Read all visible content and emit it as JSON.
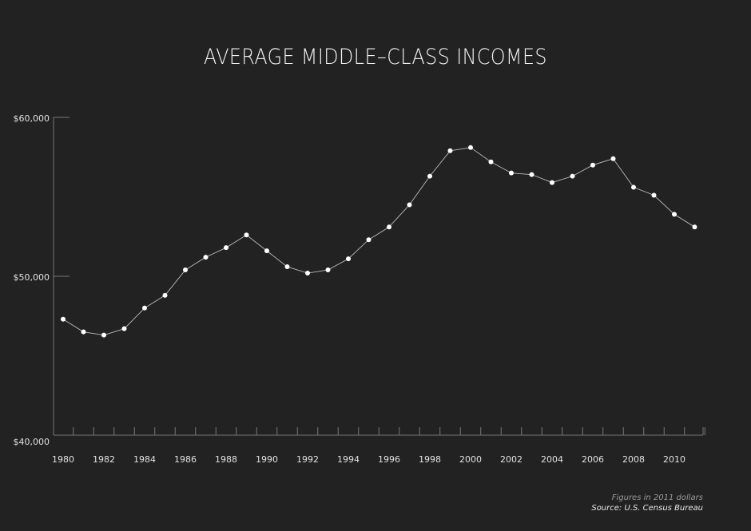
{
  "chart_data": {
    "type": "line",
    "title": "AVERAGE MIDDLE–CLASS INCOMES",
    "xlabel": "",
    "ylabel": "",
    "x": [
      1980,
      1981,
      1982,
      1983,
      1984,
      1985,
      1986,
      1987,
      1988,
      1989,
      1990,
      1991,
      1992,
      1993,
      1994,
      1995,
      1996,
      1997,
      1998,
      1999,
      2000,
      2001,
      2002,
      2003,
      2004,
      2005,
      2006,
      2007,
      2008,
      2009,
      2010,
      2011
    ],
    "series": [
      {
        "name": "Average middle-class income",
        "values": [
          47300,
          46500,
          46300,
          46700,
          48000,
          48800,
          50400,
          51200,
          51800,
          52600,
          51600,
          50600,
          50200,
          50400,
          51100,
          52300,
          53100,
          54500,
          56300,
          57900,
          58100,
          57200,
          56500,
          56400,
          55900,
          56300,
          57000,
          57400,
          55600,
          55100,
          53900,
          53100
        ]
      }
    ],
    "ylim": [
      40000,
      60000
    ],
    "yticks": [
      {
        "value": 40000,
        "label": "$40,000"
      },
      {
        "value": 50000,
        "label": "$50,000"
      },
      {
        "value": 60000,
        "label": "$60,000"
      }
    ],
    "xticklabels": [
      "1980",
      "1982",
      "1984",
      "1986",
      "1988",
      "1990",
      "1992",
      "1994",
      "1996",
      "1998",
      "2000",
      "2002",
      "2004",
      "2006",
      "2008",
      "2010"
    ],
    "grid": false,
    "notes": [
      "Figures in 2011 dollars",
      "Source: U.S. Census Bureau"
    ],
    "colors": {
      "background": "#222222",
      "line": "#bbbbbb",
      "marker": "#ffffff",
      "axis": "#777777"
    }
  }
}
